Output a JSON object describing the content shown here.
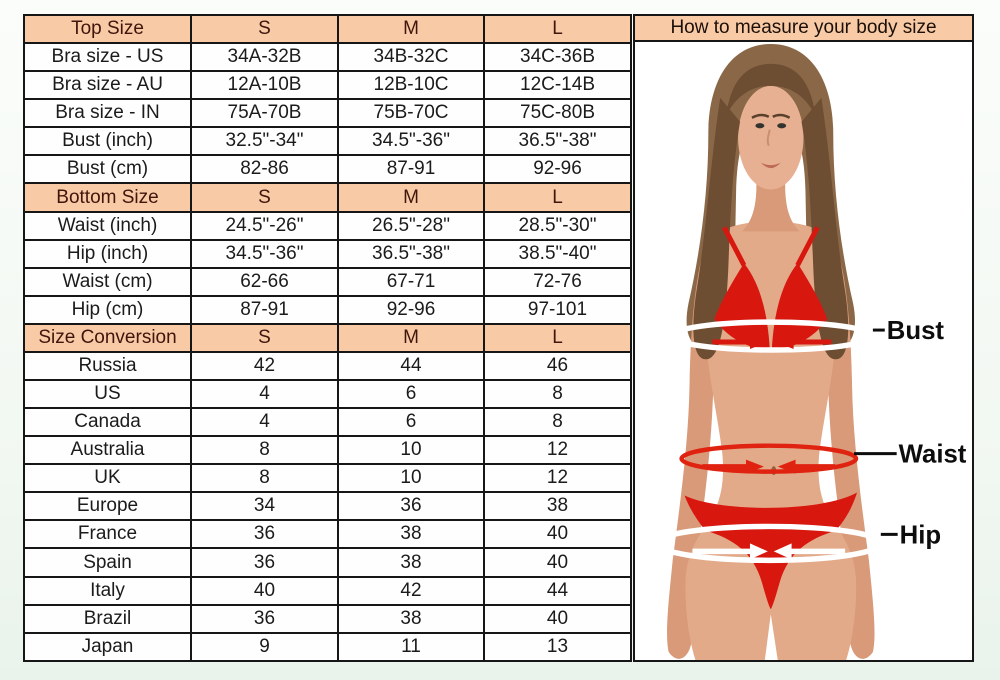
{
  "colors": {
    "header_peach": "#f8cba6",
    "table_border": "#161616",
    "cell_text": "#1b1b1b",
    "header_text": "#40150c",
    "bikini_red": "#d8170f",
    "measure_white": "#ffffff",
    "label_black": "#0d0d0d",
    "skin": "#e3aa8a",
    "hair": "#8a6746",
    "page_background": "#f1f7f1"
  },
  "size_chart": {
    "columns": [
      "S",
      "M",
      "L"
    ],
    "sections": [
      {
        "header": "Top Size",
        "rows": [
          {
            "label": "Bra size - US",
            "values": [
              "34A-32B",
              "34B-32C",
              "34C-36B"
            ]
          },
          {
            "label": "Bra size - AU",
            "values": [
              "12A-10B",
              "12B-10C",
              "12C-14B"
            ]
          },
          {
            "label": "Bra size - IN",
            "values": [
              "75A-70B",
              "75B-70C",
              "75C-80B"
            ]
          },
          {
            "label": "Bust (inch)",
            "values": [
              "32.5\"-34\"",
              "34.5\"-36\"",
              "36.5\"-38\""
            ]
          },
          {
            "label": "Bust (cm)",
            "values": [
              "82-86",
              "87-91",
              "92-96"
            ]
          }
        ]
      },
      {
        "header": "Bottom Size",
        "rows": [
          {
            "label": "Waist (inch)",
            "values": [
              "24.5\"-26\"",
              "26.5\"-28\"",
              "28.5\"-30\""
            ]
          },
          {
            "label": "Hip (inch)",
            "values": [
              "34.5\"-36\"",
              "36.5\"-38\"",
              "38.5\"-40\""
            ]
          },
          {
            "label": "Waist (cm)",
            "values": [
              "62-66",
              "67-71",
              "72-76"
            ]
          },
          {
            "label": "Hip (cm)",
            "values": [
              "87-91",
              "92-96",
              "97-101"
            ]
          }
        ]
      },
      {
        "header": "Size Conversion",
        "rows": [
          {
            "label": "Russia",
            "values": [
              "42",
              "44",
              "46"
            ]
          },
          {
            "label": "US",
            "values": [
              "4",
              "6",
              "8"
            ]
          },
          {
            "label": "Canada",
            "values": [
              "4",
              "6",
              "8"
            ]
          },
          {
            "label": "Australia",
            "values": [
              "8",
              "10",
              "12"
            ]
          },
          {
            "label": "UK",
            "values": [
              "8",
              "10",
              "12"
            ]
          },
          {
            "label": "Europe",
            "values": [
              "34",
              "36",
              "38"
            ]
          },
          {
            "label": "France",
            "values": [
              "36",
              "38",
              "40"
            ]
          },
          {
            "label": "Spain",
            "values": [
              "36",
              "38",
              "40"
            ]
          },
          {
            "label": "Italy",
            "values": [
              "40",
              "42",
              "44"
            ]
          },
          {
            "label": "Brazil",
            "values": [
              "36",
              "38",
              "40"
            ]
          },
          {
            "label": "Japan",
            "values": [
              "9",
              "11",
              "13"
            ]
          }
        ]
      }
    ]
  },
  "measure_panel": {
    "title": "How to measure your body size",
    "labels": {
      "bust": "Bust",
      "waist": "Waist",
      "hip": "Hip"
    }
  },
  "chart_data": [
    {
      "type": "table",
      "title": "Top Size",
      "columns": [
        "",
        "S",
        "M",
        "L"
      ],
      "rows": [
        [
          "Bra size - US",
          "34A-32B",
          "34B-32C",
          "34C-36B"
        ],
        [
          "Bra size - AU",
          "12A-10B",
          "12B-10C",
          "12C-14B"
        ],
        [
          "Bra size - IN",
          "75A-70B",
          "75B-70C",
          "75C-80B"
        ],
        [
          "Bust (inch)",
          "32.5\"-34\"",
          "34.5\"-36\"",
          "36.5\"-38\""
        ],
        [
          "Bust (cm)",
          "82-86",
          "87-91",
          "92-96"
        ]
      ]
    },
    {
      "type": "table",
      "title": "Bottom Size",
      "columns": [
        "",
        "S",
        "M",
        "L"
      ],
      "rows": [
        [
          "Waist (inch)",
          "24.5\"-26\"",
          "26.5\"-28\"",
          "28.5\"-30\""
        ],
        [
          "Hip (inch)",
          "34.5\"-36\"",
          "36.5\"-38\"",
          "38.5\"-40\""
        ],
        [
          "Waist (cm)",
          "62-66",
          "67-71",
          "72-76"
        ],
        [
          "Hip (cm)",
          "87-91",
          "92-96",
          "97-101"
        ]
      ]
    },
    {
      "type": "table",
      "title": "Size Conversion",
      "columns": [
        "",
        "S",
        "M",
        "L"
      ],
      "rows": [
        [
          "Russia",
          "42",
          "44",
          "46"
        ],
        [
          "US",
          "4",
          "6",
          "8"
        ],
        [
          "Canada",
          "4",
          "6",
          "8"
        ],
        [
          "Australia",
          "8",
          "10",
          "12"
        ],
        [
          "UK",
          "8",
          "10",
          "12"
        ],
        [
          "Europe",
          "34",
          "36",
          "38"
        ],
        [
          "France",
          "36",
          "38",
          "40"
        ],
        [
          "Spain",
          "36",
          "38",
          "40"
        ],
        [
          "Italy",
          "40",
          "42",
          "44"
        ],
        [
          "Brazil",
          "36",
          "38",
          "40"
        ],
        [
          "Japan",
          "9",
          "11",
          "13"
        ]
      ]
    }
  ]
}
